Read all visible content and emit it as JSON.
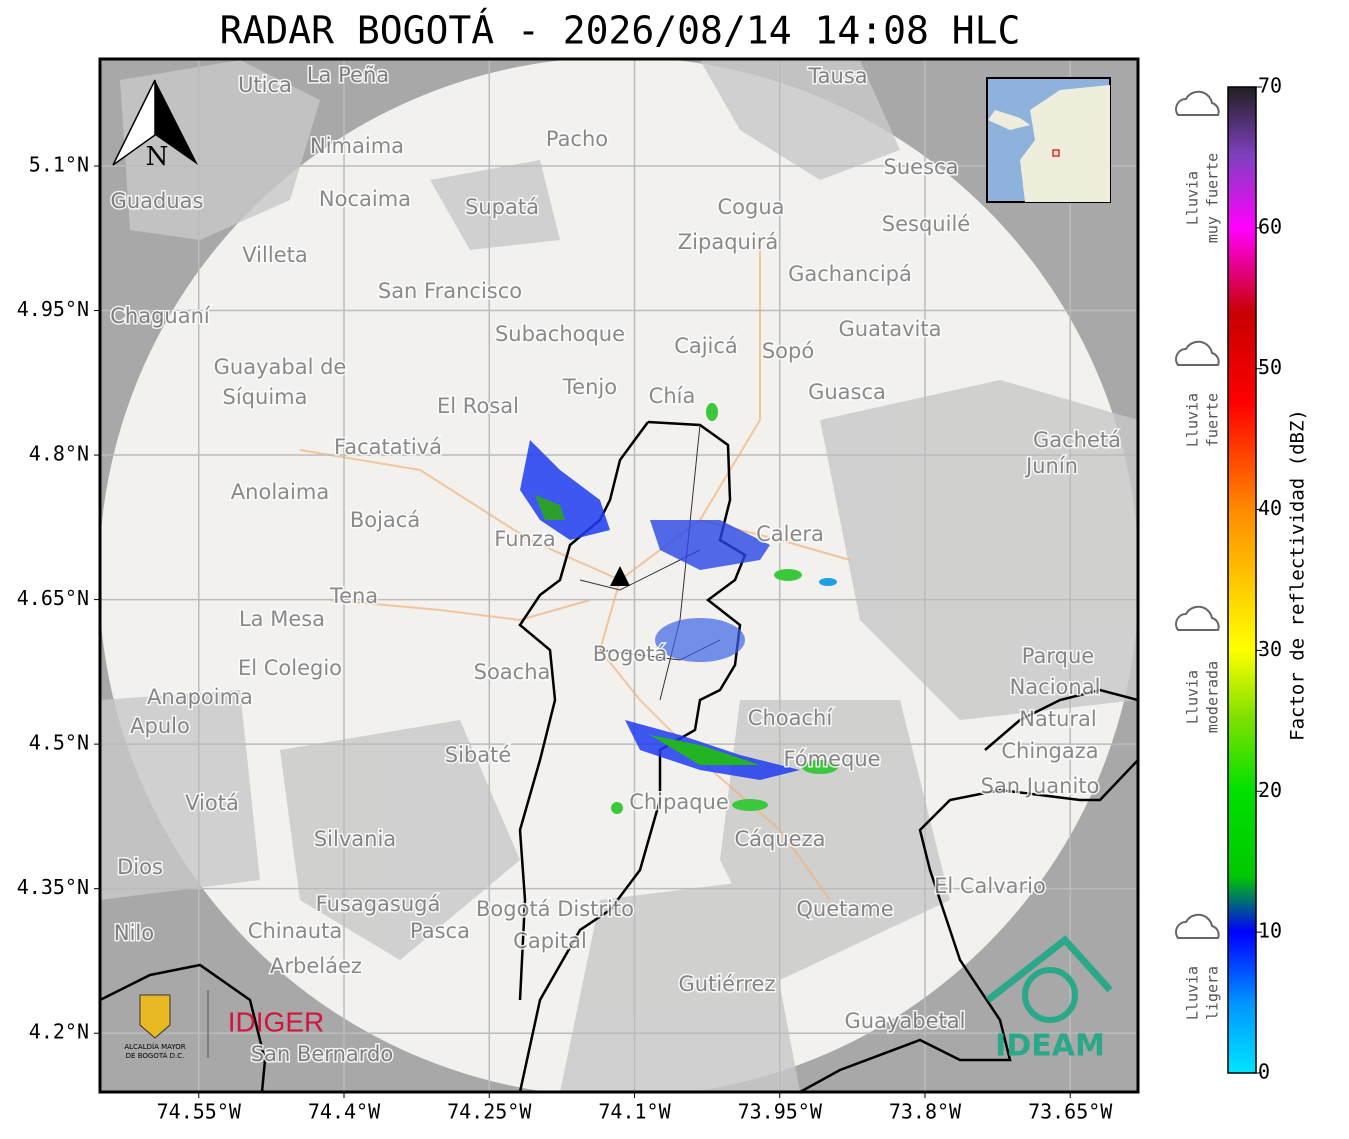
{
  "title": "RADAR BOGOTÁ - 2026/08/14 14:08 HLC",
  "map": {
    "xlim": [
      -74.652,
      -73.58
    ],
    "ylim": [
      4.139,
      5.211
    ],
    "xticks": [
      {
        "value": -74.55,
        "label": "74.55°W"
      },
      {
        "value": -74.4,
        "label": "74.4°W"
      },
      {
        "value": -74.25,
        "label": "74.25°W"
      },
      {
        "value": -74.1,
        "label": "74.1°W"
      },
      {
        "value": -73.95,
        "label": "73.95°W"
      },
      {
        "value": -73.8,
        "label": "73.8°W"
      },
      {
        "value": -73.65,
        "label": "73.65°W"
      }
    ],
    "yticks": [
      {
        "value": 5.1,
        "label": "5.1°N"
      },
      {
        "value": 4.95,
        "label": "4.95°N"
      },
      {
        "value": 4.8,
        "label": "4.8°N"
      },
      {
        "value": 4.65,
        "label": "4.65°N"
      },
      {
        "value": 4.5,
        "label": "4.5°N"
      },
      {
        "value": 4.35,
        "label": "4.35°N"
      },
      {
        "value": 4.2,
        "label": "4.2°N"
      }
    ],
    "north_label": "N",
    "places": [
      "La Peña",
      "Utica",
      "Tausa",
      "Pacho",
      "Nimaima",
      "Guaduas",
      "Nocaima",
      "Supatá",
      "Cogua",
      "Suesca",
      "Sesquilé",
      "Zipaquirá",
      "Villeta",
      "Gachancipá",
      "San Francisco",
      "Chaguaní",
      "Guatavita",
      "Subachoque",
      "Cajicá",
      "Sopó",
      "Guayabal de",
      "Síquima",
      "Tenjo",
      "Chía",
      "Guasca",
      "El Rosal",
      "Gachetá",
      "Junín",
      "Facatativá",
      "Anolaima",
      "Bojacá",
      "Funza",
      "Calera",
      "Tena",
      "La Mesa",
      "Parque",
      "Nacional",
      "Natural",
      "Chingaza",
      "El Colegio",
      "Soacha",
      "Bogotá",
      "Anapoima",
      "Apulo",
      "Choachí",
      "Sibaté",
      "Fómeque",
      "San Juanito",
      "Viotá",
      "Chipaque",
      "Silvania",
      "Cáqueza",
      "Dios",
      "El Calvario",
      "Fusagasugá",
      "Quetame",
      "Bogotá Distrito",
      "Capital",
      "Chinauta",
      "Pasca",
      "Nilo",
      "Arbeláez",
      "Gutiérrez",
      "Guayabetal",
      "San Bernardo"
    ]
  },
  "colorbar": {
    "label": "Factor de reflectividad (dBZ)",
    "lim": [
      0,
      70
    ],
    "ticks": [
      0,
      10,
      20,
      30,
      40,
      50,
      60,
      70
    ]
  },
  "legend": [
    {
      "lines": [
        "Lluvia",
        "muy fuerte"
      ]
    },
    {
      "lines": [
        "Lluvia",
        "fuerte"
      ]
    },
    {
      "lines": [
        "Lluvia",
        "moderada"
      ]
    },
    {
      "lines": [
        "Lluvia",
        "ligera"
      ]
    }
  ],
  "logos": {
    "alcaldia": [
      "ALCALDÍA MAYOR",
      "DE BOGOTÁ D.C."
    ],
    "idiger": "IDIGER",
    "ideam": "IDEAM"
  }
}
